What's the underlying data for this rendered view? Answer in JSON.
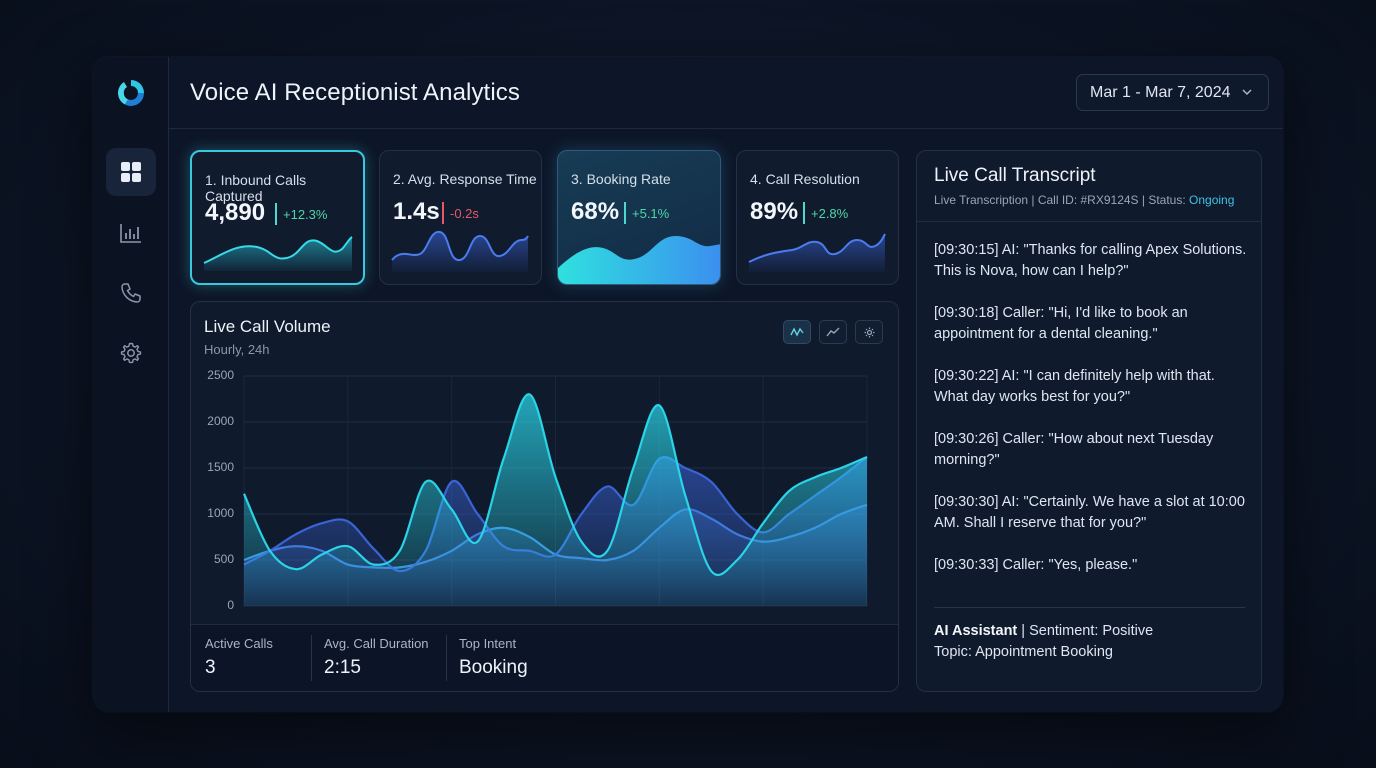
{
  "header": {
    "title": "Voice AI Receptionist Analytics",
    "date_range": "Mar 1 - Mar 7, 2024"
  },
  "sidebar": {
    "items": [
      {
        "icon": "dashboard-grid-icon",
        "active": true
      },
      {
        "icon": "bar-chart-icon",
        "active": false
      },
      {
        "icon": "phone-icon",
        "active": false
      },
      {
        "icon": "gear-icon",
        "active": false
      }
    ]
  },
  "kpis": [
    {
      "label": "1. Inbound Calls Captured",
      "value": "4,890",
      "delta": "+12.3%",
      "delta_color": "#4fd6a8"
    },
    {
      "label": "2. Avg. Response Time",
      "value": "1.4s",
      "delta": "-0.2s",
      "delta_color": "#e4586b"
    },
    {
      "label": "3. Booking Rate",
      "value": "68%",
      "delta": "+5.1%",
      "delta_color": "#4fd6a8"
    },
    {
      "label": "4. Call Resolution",
      "value": "89%",
      "delta": "+2.8%",
      "delta_color": "#4fd6a8"
    }
  ],
  "volume_chart": {
    "title": "Live Call Volume",
    "subtitle": "Hourly, 24h",
    "toolbar": [
      "wave-chart-icon",
      "line-chart-icon",
      "settings-icon"
    ]
  },
  "chart_data": {
    "type": "area",
    "title": "Live Call Volume",
    "subtitle": "Hourly, 24h",
    "ylim": [
      0,
      2500
    ],
    "yticks": [
      0,
      500,
      1000,
      1500,
      2000,
      2500
    ],
    "grid": true,
    "x": [
      0,
      1,
      2,
      3,
      4,
      5,
      6,
      7,
      8,
      9,
      10,
      11,
      12,
      13,
      14,
      15,
      16,
      17,
      18,
      19,
      20,
      21,
      22,
      23,
      24
    ],
    "series": [
      {
        "color": "#2ad3e6",
        "values": [
          1220,
          600,
          400,
          560,
          650,
          450,
          600,
          1350,
          1050,
          700,
          1600,
          2300,
          1400,
          700,
          600,
          1500,
          2180,
          1200,
          380,
          500,
          900,
          1250,
          1400,
          1500,
          1620
        ]
      },
      {
        "color": "#3a63d6",
        "values": [
          450,
          600,
          780,
          900,
          920,
          620,
          380,
          600,
          1350,
          1000,
          650,
          600,
          560,
          1000,
          1300,
          1100,
          1600,
          1500,
          1350,
          1000,
          800,
          1000,
          1200,
          1400,
          1620
        ]
      },
      {
        "color": "#3f86e0",
        "values": [
          500,
          600,
          650,
          600,
          450,
          420,
          420,
          480,
          600,
          780,
          850,
          750,
          560,
          520,
          500,
          600,
          850,
          1050,
          950,
          780,
          700,
          750,
          850,
          1000,
          1100
        ]
      }
    ]
  },
  "stats": [
    {
      "label": "Active Calls",
      "value": "3"
    },
    {
      "label": "Avg. Call Duration",
      "value": "2:15"
    },
    {
      "label": "Top Intent",
      "value": "Booking"
    }
  ],
  "transcript": {
    "title": "Live Call Transcript",
    "meta_prefix": "Live Transcription | Call ID: #RX9124S | Status:",
    "status": "Ongoing",
    "messages": [
      "[09:30:15] AI: \"Thanks for calling Apex Solutions. This is Nova, how can I help?\"",
      "[09:30:18] Caller: \"Hi, I'd like to book an appointment for a dental cleaning.\"",
      "[09:30:22] AI: \"I can definitely help with that. What day works best for you?\"",
      "[09:30:26] Caller: \"How about next Tuesday morning?\"",
      "[09:30:30] AI: \"Certainly. We have a slot at 10:00 AM. Shall I reserve that for you?\"",
      "[09:30:33] Caller: \"Yes, please.\""
    ],
    "footer": {
      "assistant": "AI Assistant",
      "sentiment": " | Sentiment: Positive",
      "topic": "Topic: Appointment Booking"
    }
  },
  "colors": {
    "accent": "#38c9dd",
    "background": "#0d1628",
    "card": "#0f1a2c",
    "positive": "#4fd6a8",
    "negative": "#e4586b"
  }
}
